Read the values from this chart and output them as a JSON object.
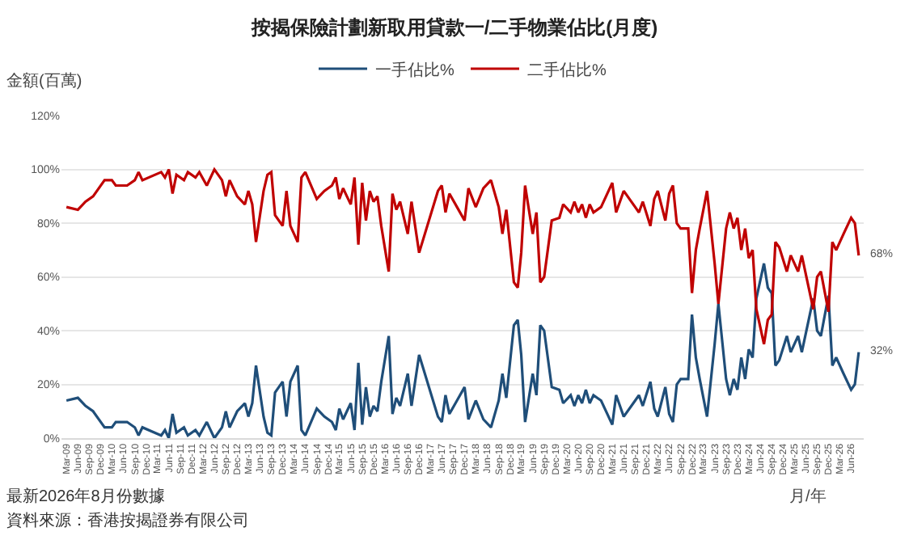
{
  "chart_data": {
    "type": "line",
    "title": "按揭保險計劃新取用貸款一/二手物業佔比(月度)",
    "ylabel": "金額(百萬)",
    "xlabel": "月/年",
    "x": [
      "2009-03",
      "2009-06",
      "2009-08",
      "2009-10",
      "2010-01",
      "2010-03",
      "2010-04",
      "2010-07",
      "2010-09",
      "2010-10",
      "2010-11",
      "2011-04",
      "2011-05",
      "2011-06",
      "2011-07",
      "2011-08",
      "2011-10",
      "2011-11",
      "2012-01",
      "2012-02",
      "2012-04",
      "2012-06",
      "2012-08",
      "2012-09",
      "2012-10",
      "2012-12",
      "2013-02",
      "2013-03",
      "2013-04",
      "2013-05",
      "2013-07",
      "2013-08",
      "2013-09",
      "2013-10",
      "2013-12",
      "2014-01",
      "2014-02",
      "2014-04",
      "2014-05",
      "2014-06",
      "2014-09",
      "2014-11",
      "2015-01",
      "2015-02",
      "2015-03",
      "2015-04",
      "2015-05",
      "2015-06",
      "2015-07",
      "2015-08",
      "2015-09",
      "2015-10",
      "2015-11",
      "2015-12",
      "2016-01",
      "2016-02",
      "2016-04",
      "2016-05",
      "2016-06",
      "2016-07",
      "2016-09",
      "2016-10",
      "2016-12",
      "2017-05",
      "2017-06",
      "2017-07",
      "2017-08",
      "2017-10",
      "2017-12",
      "2018-01",
      "2018-03",
      "2018-05",
      "2018-07",
      "2018-09",
      "2018-10",
      "2018-11",
      "2019-01",
      "2019-02",
      "2019-03",
      "2019-04",
      "2019-06",
      "2019-07",
      "2019-08",
      "2019-09",
      "2019-11",
      "2020-01",
      "2020-02",
      "2020-04",
      "2020-05",
      "2020-06",
      "2020-07",
      "2020-08",
      "2020-09",
      "2020-10",
      "2020-12",
      "2021-03",
      "2021-04",
      "2021-06",
      "2021-09",
      "2021-10",
      "2021-11",
      "2022-01",
      "2022-02",
      "2022-03",
      "2022-05",
      "2022-06",
      "2022-07",
      "2022-08",
      "2022-09",
      "2022-11",
      "2022-12",
      "2023-01",
      "2023-02",
      "2023-04",
      "2023-06",
      "2023-07",
      "2023-09",
      "2023-10",
      "2023-11",
      "2023-12",
      "2024-01",
      "2024-02",
      "2024-03",
      "2024-04",
      "2024-05",
      "2024-07",
      "2024-08",
      "2024-09",
      "2024-10",
      "2024-11",
      "2025-01",
      "2025-02",
      "2025-04",
      "2025-05",
      "2025-08",
      "2025-09",
      "2025-10",
      "2025-12",
      "2026-01",
      "2026-02",
      "2026-04",
      "2026-06",
      "2026-07",
      "2026-08"
    ],
    "series": [
      {
        "name": "一手佔比%",
        "color": "#1f4e79",
        "values": [
          14,
          15,
          12,
          10,
          4,
          4,
          6,
          6,
          4,
          1,
          4,
          1,
          3,
          0,
          9,
          2,
          4,
          1,
          3,
          1,
          6,
          0,
          4,
          10,
          4,
          10,
          13,
          8,
          13,
          27,
          8,
          2,
          1,
          17,
          21,
          8,
          21,
          27,
          3,
          1,
          11,
          8,
          6,
          3,
          11,
          7,
          10,
          13,
          3,
          28,
          5,
          19,
          8,
          12,
          10,
          21,
          38,
          9,
          15,
          12,
          24,
          12,
          31,
          8,
          6,
          16,
          9,
          14,
          19,
          7,
          14,
          7,
          4,
          14,
          24,
          15,
          42,
          44,
          31,
          6,
          24,
          16,
          42,
          40,
          19,
          18,
          13,
          16,
          12,
          16,
          13,
          18,
          13,
          16,
          14,
          5,
          16,
          8,
          14,
          16,
          12,
          21,
          11,
          8,
          19,
          9,
          6,
          20,
          22,
          22,
          46,
          30,
          22,
          8,
          35,
          50,
          22,
          16,
          22,
          18,
          30,
          22,
          33,
          30,
          52,
          65,
          56,
          54,
          27,
          29,
          38,
          32,
          38,
          32,
          52,
          40,
          38,
          53,
          27,
          30,
          24,
          18,
          20,
          32
        ]
      },
      {
        "name": "二手佔比%",
        "color": "#c00000",
        "values": [
          86,
          85,
          88,
          90,
          96,
          96,
          94,
          94,
          96,
          99,
          96,
          99,
          97,
          100,
          91,
          98,
          96,
          99,
          97,
          99,
          94,
          100,
          96,
          90,
          96,
          90,
          87,
          92,
          87,
          73,
          92,
          98,
          99,
          83,
          79,
          92,
          79,
          73,
          97,
          99,
          89,
          92,
          94,
          97,
          89,
          93,
          90,
          87,
          97,
          72,
          95,
          81,
          92,
          88,
          90,
          79,
          62,
          91,
          85,
          88,
          76,
          88,
          69,
          92,
          94,
          84,
          91,
          86,
          81,
          93,
          86,
          93,
          96,
          86,
          76,
          85,
          58,
          56,
          69,
          94,
          76,
          84,
          58,
          60,
          81,
          82,
          87,
          84,
          88,
          84,
          87,
          82,
          87,
          84,
          86,
          95,
          84,
          92,
          86,
          84,
          88,
          79,
          89,
          92,
          81,
          91,
          94,
          80,
          78,
          78,
          54,
          70,
          78,
          92,
          65,
          50,
          78,
          84,
          78,
          82,
          70,
          78,
          67,
          70,
          48,
          35,
          44,
          46,
          73,
          71,
          62,
          68,
          62,
          68,
          48,
          60,
          62,
          47,
          73,
          70,
          76,
          82,
          80,
          68
        ]
      }
    ],
    "xlim": [
      "2009-01-20",
      "2026-09-10"
    ],
    "xticks": [
      {
        "value": "2009-03",
        "label": "Mar-09"
      },
      {
        "value": "2009-06",
        "label": "Jun-09"
      },
      {
        "value": "2009-09",
        "label": "Sep-09"
      },
      {
        "value": "2009-12",
        "label": "Dec-09"
      },
      {
        "value": "2010-03",
        "label": "Mar-10"
      },
      {
        "value": "2010-06",
        "label": "Jun-10"
      },
      {
        "value": "2010-09",
        "label": "Sep-10"
      },
      {
        "value": "2010-12",
        "label": "Dec-10"
      },
      {
        "value": "2011-03",
        "label": "Mar-11"
      },
      {
        "value": "2011-06",
        "label": "Jun-11"
      },
      {
        "value": "2011-09",
        "label": "Sep-11"
      },
      {
        "value": "2011-12",
        "label": "Dec-11"
      },
      {
        "value": "2012-03",
        "label": "Mar-12"
      },
      {
        "value": "2012-06",
        "label": "Jun-12"
      },
      {
        "value": "2012-09",
        "label": "Sep-12"
      },
      {
        "value": "2012-12",
        "label": "Dec-12"
      },
      {
        "value": "2013-03",
        "label": "Mar-13"
      },
      {
        "value": "2013-06",
        "label": "Jun-13"
      },
      {
        "value": "2013-09",
        "label": "Sep-13"
      },
      {
        "value": "2013-12",
        "label": "Dec-13"
      },
      {
        "value": "2014-03",
        "label": "Mar-14"
      },
      {
        "value": "2014-06",
        "label": "Jun-14"
      },
      {
        "value": "2014-09",
        "label": "Sep-14"
      },
      {
        "value": "2014-12",
        "label": "Dec-14"
      },
      {
        "value": "2015-03",
        "label": "Mar-15"
      },
      {
        "value": "2015-06",
        "label": "Jun-15"
      },
      {
        "value": "2015-09",
        "label": "Sep-15"
      },
      {
        "value": "2015-12",
        "label": "Dec-15"
      },
      {
        "value": "2016-03",
        "label": "Mar-16"
      },
      {
        "value": "2016-06",
        "label": "Jun-16"
      },
      {
        "value": "2016-09",
        "label": "Sep-16"
      },
      {
        "value": "2016-12",
        "label": "Dec-16"
      },
      {
        "value": "2017-03",
        "label": "Mar-17"
      },
      {
        "value": "2017-06",
        "label": "Jun-17"
      },
      {
        "value": "2017-09",
        "label": "Sep-17"
      },
      {
        "value": "2017-12",
        "label": "Dec-17"
      },
      {
        "value": "2018-03",
        "label": "Mar-18"
      },
      {
        "value": "2018-06",
        "label": "Jun-18"
      },
      {
        "value": "2018-09",
        "label": "Sep-18"
      },
      {
        "value": "2018-12",
        "label": "Dec-18"
      },
      {
        "value": "2019-03",
        "label": "Mar-19"
      },
      {
        "value": "2019-06",
        "label": "Jun-19"
      },
      {
        "value": "2019-09",
        "label": "Sep-19"
      },
      {
        "value": "2019-12",
        "label": "Dec-19"
      },
      {
        "value": "2020-03",
        "label": "Mar-20"
      },
      {
        "value": "2020-06",
        "label": "Jun-20"
      },
      {
        "value": "2020-09",
        "label": "Sep-20"
      },
      {
        "value": "2020-12",
        "label": "Dec-20"
      },
      {
        "value": "2021-03",
        "label": "Mar-21"
      },
      {
        "value": "2021-06",
        "label": "Jun-21"
      },
      {
        "value": "2021-09",
        "label": "Sep-21"
      },
      {
        "value": "2021-12",
        "label": "Dec-21"
      },
      {
        "value": "2022-03",
        "label": "Mar-22"
      },
      {
        "value": "2022-06",
        "label": "Jun-22"
      },
      {
        "value": "2022-09",
        "label": "Sep-22"
      },
      {
        "value": "2022-12",
        "label": "Dec-22"
      },
      {
        "value": "2023-03",
        "label": "Mar-23"
      },
      {
        "value": "2023-06",
        "label": "Jun-23"
      },
      {
        "value": "2023-09",
        "label": "Sep-23"
      },
      {
        "value": "2023-12",
        "label": "Dec-23"
      },
      {
        "value": "2024-03",
        "label": "Mar-24"
      },
      {
        "value": "2024-06",
        "label": "Jun-24"
      },
      {
        "value": "2024-09",
        "label": "Sep-24"
      },
      {
        "value": "2024-12",
        "label": "Dec-24"
      },
      {
        "value": "2025-03",
        "label": "Mar-25"
      },
      {
        "value": "2025-06",
        "label": "Jun-25"
      },
      {
        "value": "2025-09",
        "label": "Sep-25"
      },
      {
        "value": "2025-12",
        "label": "Dec-25"
      },
      {
        "value": "2026-03",
        "label": "Mar-26"
      },
      {
        "value": "2026-06",
        "label": "Jun-26"
      }
    ],
    "ylim": [
      0,
      120
    ],
    "yticks": [
      {
        "value": 0,
        "label": "0%"
      },
      {
        "value": 20,
        "label": "20%"
      },
      {
        "value": 40,
        "label": "40%"
      },
      {
        "value": 60,
        "label": "60%"
      },
      {
        "value": 80,
        "label": "80%"
      },
      {
        "value": 100,
        "label": "100%"
      },
      {
        "value": 120,
        "label": "120%"
      }
    ],
    "grid": "y",
    "legend": "top",
    "marker": "none",
    "line_style": "solid",
    "annotations": [
      {
        "text": "68%",
        "x": "2026-08",
        "y": 68
      },
      {
        "text": "32%",
        "x": "2026-08",
        "y": 32
      },
      "最新2026年8月份數據",
      "資料來源：香港按揭證券有限公司"
    ]
  }
}
